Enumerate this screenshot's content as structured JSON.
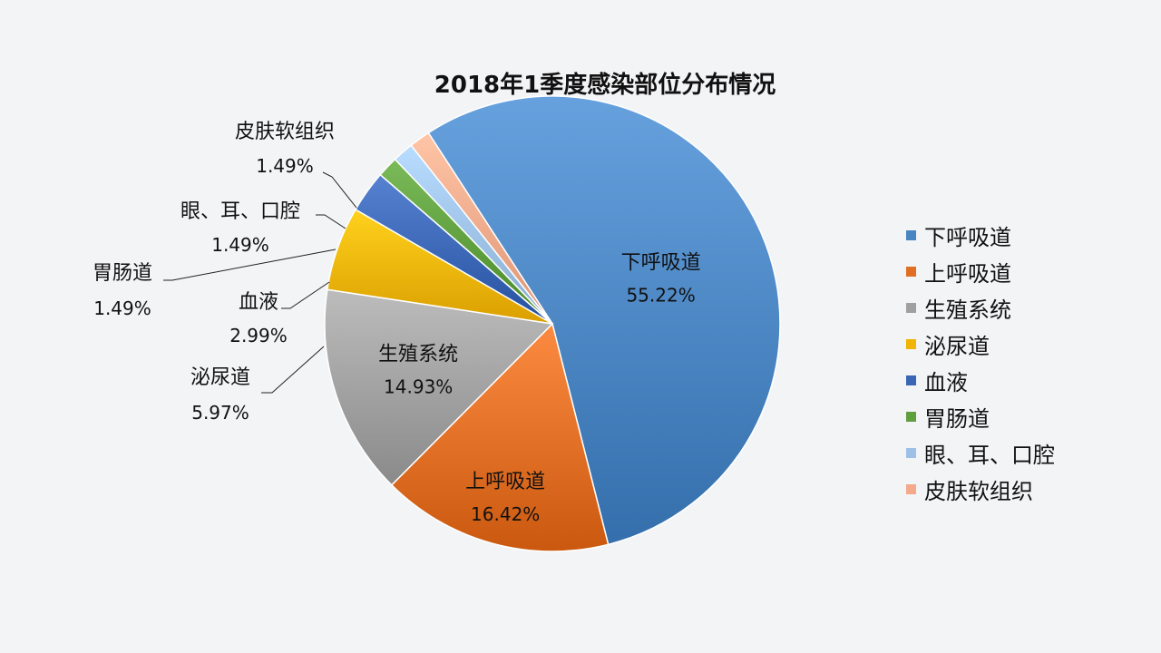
{
  "chart_data": {
    "type": "pie",
    "title": "2018年1季度感染部位分布情况",
    "slices": [
      {
        "label": "下呼吸道",
        "value": 55.22,
        "value_label": "55.22%",
        "color": "#4a85c2"
      },
      {
        "label": "上呼吸道",
        "value": 16.42,
        "value_label": "16.42%",
        "color": "#e06f25"
      },
      {
        "label": "生殖系统",
        "value": 14.93,
        "value_label": "14.93%",
        "color": "#a0a0a0"
      },
      {
        "label": "泌尿道",
        "value": 5.97,
        "value_label": "5.97%",
        "color": "#f0b500"
      },
      {
        "label": "血液",
        "value": 2.99,
        "value_label": "2.99%",
        "color": "#3a66b5"
      },
      {
        "label": "胃肠道",
        "value": 1.49,
        "value_label": "1.49%",
        "color": "#5e9e3d"
      },
      {
        "label": "眼、耳、口腔",
        "value": 1.49,
        "value_label": "1.49%",
        "color": "#9dc1e6"
      },
      {
        "label": "皮肤软组织",
        "value": 1.49,
        "value_label": "1.49%",
        "color": "#f3a98a"
      }
    ],
    "legend_position": "right"
  }
}
